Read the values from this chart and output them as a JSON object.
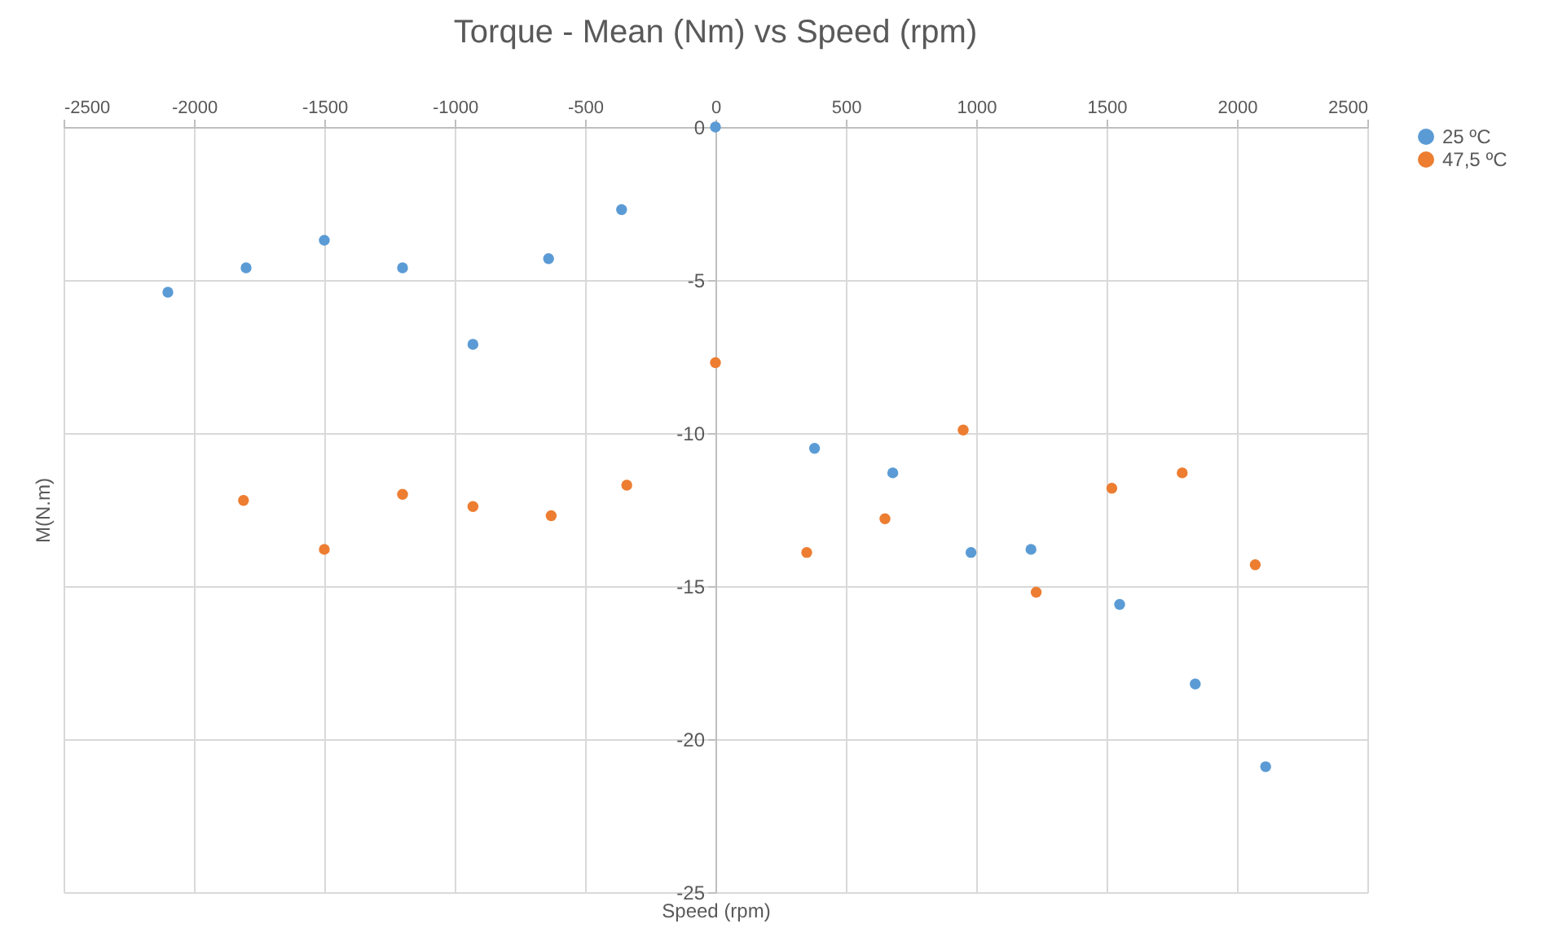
{
  "chart_data": {
    "type": "scatter",
    "title": "Torque - Mean (Nm) vs Speed (rpm)",
    "xlabel": "Speed (rpm)",
    "ylabel": "M(N.m)",
    "xlim": [
      -2500,
      2500
    ],
    "xticks": [
      -2500,
      -2000,
      -1500,
      -1000,
      -500,
      0,
      500,
      1000,
      1500,
      2000,
      2500
    ],
    "ylim": [
      -25,
      0
    ],
    "yticks": [
      -25,
      -20,
      -15,
      -10,
      -5,
      0
    ],
    "grid": true,
    "legend": "right",
    "marker": "circle",
    "series": [
      {
        "name": "25 ºC",
        "color": "#5b9bd5",
        "x": [
          -2100,
          -1800,
          -1500,
          -1200,
          -930,
          -640,
          -360,
          0,
          380,
          680,
          980,
          1210,
          1550,
          1840,
          2110
        ],
        "values": [
          -5.4,
          -4.6,
          -3.7,
          -4.6,
          -7.1,
          -4.3,
          -2.7,
          0,
          -10.5,
          -11.3,
          -13.9,
          -13.8,
          -15.6,
          -18.2,
          -20.9
        ]
      },
      {
        "name": "47,5 ºC",
        "color": "#ed7d31",
        "x": [
          -1810,
          -1500,
          -1200,
          -930,
          -630,
          -340,
          0,
          350,
          650,
          950,
          1230,
          1520,
          1790,
          2070
        ],
        "values": [
          -12.2,
          -13.8,
          -12.0,
          -12.4,
          -12.7,
          -11.7,
          -7.7,
          -13.9,
          -12.8,
          -9.9,
          -15.2,
          -11.8,
          -11.3,
          -14.3
        ]
      }
    ]
  }
}
